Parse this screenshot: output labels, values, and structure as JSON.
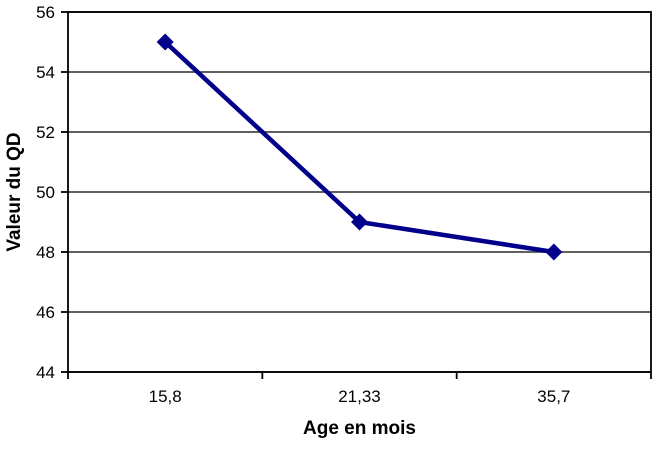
{
  "chart_data": {
    "type": "line",
    "categories": [
      "15,8",
      "21,33",
      "35,7"
    ],
    "series": [
      {
        "name": "QD",
        "values": [
          55,
          49,
          48
        ]
      }
    ],
    "title": "",
    "xlabel": "Age en mois",
    "ylabel": "Valeur du QD",
    "ylim": [
      44,
      56
    ],
    "ytick_step": 2,
    "ytick_labels": [
      "44",
      "46",
      "48",
      "50",
      "52",
      "54",
      "56"
    ],
    "grid": true,
    "legend_position": "none",
    "marker": "diamond",
    "colors": {
      "line": "#00008B",
      "marker": "#00008B",
      "gridline": "#4a4a4a",
      "axis": "#000000",
      "background": "#ffffff",
      "text": "#000000"
    }
  }
}
